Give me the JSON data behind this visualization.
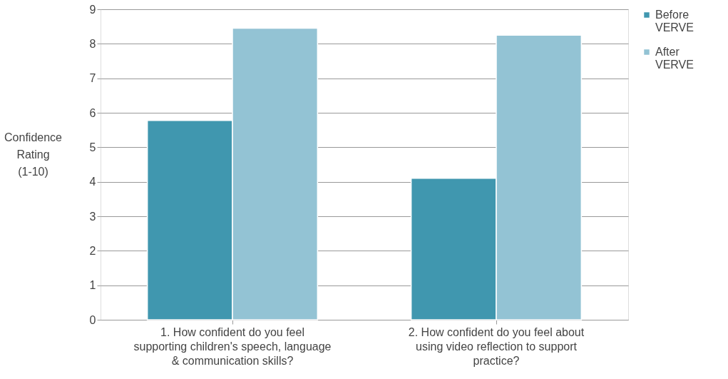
{
  "chart_data": {
    "type": "bar",
    "ylabel": "Confidence Rating (1-10)",
    "categories": [
      "1. How confident do you feel supporting children's speech, language & communication skills?",
      "2. How confident do you feel about using video reflection to support practice?"
    ],
    "series": [
      {
        "name": "Before VERVE",
        "color": "#4097af",
        "values": [
          5.78,
          4.1
        ]
      },
      {
        "name": "After VERVE",
        "color": "#93c3d4",
        "values": [
          8.45,
          8.25
        ]
      }
    ],
    "ylim": [
      0,
      9
    ],
    "yticks": [
      0,
      1,
      2,
      3,
      4,
      5,
      6,
      7,
      8,
      9
    ],
    "grid": "y",
    "legend": "right"
  }
}
